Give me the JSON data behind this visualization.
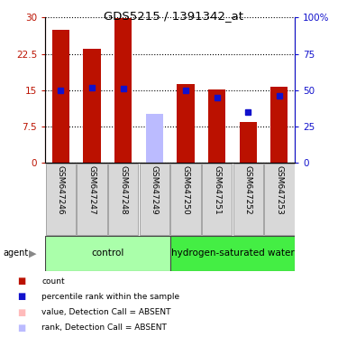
{
  "title": "GDS5215 / 1391342_at",
  "samples": [
    "GSM647246",
    "GSM647247",
    "GSM647248",
    "GSM647249",
    "GSM647250",
    "GSM647251",
    "GSM647252",
    "GSM647253"
  ],
  "count_values": [
    27.5,
    23.5,
    29.8,
    null,
    16.2,
    15.2,
    8.5,
    15.7
  ],
  "rank_values_pct": [
    50.0,
    52.0,
    51.0,
    null,
    50.0,
    45.0,
    null,
    46.0
  ],
  "absent_value": [
    null,
    null,
    null,
    9.0,
    null,
    null,
    null,
    null
  ],
  "absent_rank_pct": [
    null,
    null,
    null,
    34.0,
    null,
    null,
    null,
    null
  ],
  "rank_sq_pct": [
    null,
    null,
    null,
    null,
    null,
    null,
    35.0,
    null
  ],
  "ylim_left": [
    0,
    30
  ],
  "ylim_right": [
    0,
    100
  ],
  "yticks_left": [
    0,
    7.5,
    15,
    22.5,
    30
  ],
  "yticks_right": [
    0,
    25,
    50,
    75,
    100
  ],
  "yticklabels_left": [
    "0",
    "7.5",
    "15",
    "22.5",
    "30"
  ],
  "yticklabels_right": [
    "0",
    "25",
    "50",
    "75",
    "100%"
  ],
  "color_count": "#bb1100",
  "color_rank": "#1111cc",
  "color_absent_value": "#ffbbbb",
  "color_absent_rank": "#bbbbff",
  "control_color": "#aaffaa",
  "hydrogen_color": "#44ee44",
  "bar_width": 0.55,
  "legend_labels": [
    "count",
    "percentile rank within the sample",
    "value, Detection Call = ABSENT",
    "rank, Detection Call = ABSENT"
  ],
  "legend_colors": [
    "#bb1100",
    "#1111cc",
    "#ffbbbb",
    "#bbbbff"
  ]
}
